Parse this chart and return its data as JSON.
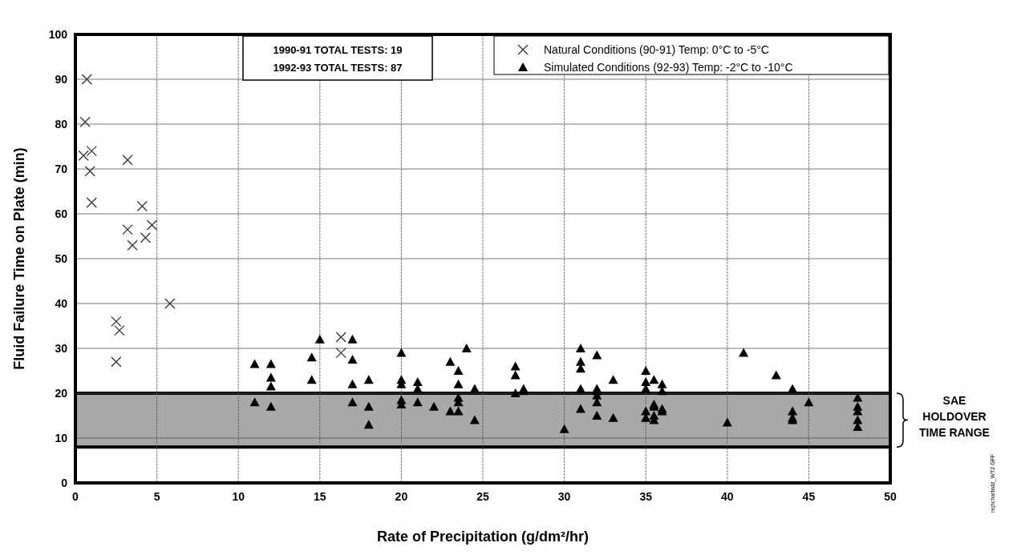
{
  "chart_data": {
    "type": "scatter",
    "xlabel": "Rate of Precipitation (g/dm²/hr)",
    "ylabel": "Fluid Failure Time on Plate (min)",
    "xlim": [
      0,
      50
    ],
    "ylim": [
      0,
      100
    ],
    "xticks": [
      0,
      5,
      10,
      15,
      20,
      25,
      30,
      35,
      40,
      45,
      50
    ],
    "yticks": [
      0,
      10,
      20,
      30,
      40,
      50,
      60,
      70,
      80,
      90,
      100
    ],
    "grid": true,
    "legend": "top right",
    "annotations": [
      "1990-91 TOTAL TESTS: 19",
      "1992-93 TOTAL TESTS: 87",
      "rep\\chartsdz_WT2.GFF"
    ],
    "bands": [
      {
        "axis": "y",
        "from": 8,
        "to": 20,
        "label": "SAE HOLDOVER TIME RANGE",
        "color": "#a8a8a8"
      }
    ],
    "series": [
      {
        "name": "Natural Conditions (90-91) Temp: 0°C to -5°C",
        "color": "#333333",
        "marker": "cross",
        "x": [
          0.7,
          0.6,
          0.5,
          1,
          0.9,
          1,
          3.2,
          3.2,
          3.5,
          4.1,
          4.3,
          4.7,
          5.8,
          2.5,
          2.7,
          2.5,
          16.3,
          16.3
        ],
        "values": [
          90,
          80.5,
          73,
          74,
          69.5,
          62.5,
          72,
          56.5,
          53,
          61.7,
          54.7,
          57.5,
          40,
          36,
          34,
          27,
          32.5,
          29
        ]
      },
      {
        "name": "Simulated Conditions (92-93) Temp: -2°C to -10°C",
        "color": "#000000",
        "marker": "triangle",
        "x": [
          11,
          11,
          12,
          12,
          12,
          12,
          14.5,
          14.5,
          15,
          17,
          17,
          17,
          17,
          18,
          18,
          18,
          20,
          20,
          20,
          20,
          20,
          21,
          21,
          21,
          22,
          23,
          23,
          23.5,
          23.5,
          23.5,
          23.5,
          23.5,
          24,
          24.5,
          24.5,
          27,
          27,
          27,
          27.5,
          27.5,
          30,
          31,
          31,
          31,
          31,
          31,
          32,
          32,
          32,
          32,
          32,
          32,
          33,
          33,
          35,
          35,
          35,
          35,
          35,
          35.5,
          35.5,
          35.5,
          35.5,
          35.5,
          36,
          36,
          36,
          36,
          40,
          41,
          43,
          44,
          44,
          44,
          44,
          45,
          48,
          48,
          48,
          48,
          48
        ],
        "values": [
          26.5,
          18,
          26.5,
          23.5,
          21.5,
          17,
          28,
          23,
          32,
          32,
          27.5,
          22,
          18,
          23,
          17,
          13,
          29,
          23,
          22,
          18.5,
          17.5,
          22.5,
          21,
          18,
          17,
          27,
          16,
          25,
          22,
          19,
          18,
          16,
          30,
          21,
          14,
          26,
          24,
          20,
          21,
          20.5,
          12,
          30,
          27,
          25.5,
          21,
          16.5,
          28.5,
          21,
          20.5,
          19.5,
          18,
          15,
          23,
          14.5,
          25,
          22.5,
          21,
          16,
          14.5,
          23,
          17.5,
          17,
          15,
          14,
          22,
          20.5,
          16.5,
          16,
          13.5,
          29,
          24,
          21,
          16,
          14,
          14.5,
          18,
          19,
          17,
          16,
          14,
          12.5
        ]
      }
    ]
  }
}
